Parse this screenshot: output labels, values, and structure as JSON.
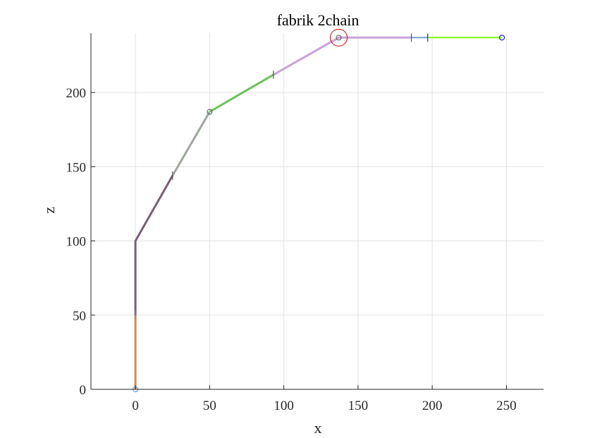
{
  "chart_data": {
    "type": "line",
    "title": "fabrik 2chain",
    "xlabel": "x",
    "ylabel": "z",
    "xlim": [
      -30,
      275
    ],
    "ylim": [
      0,
      240
    ],
    "xticks": [
      0,
      50,
      100,
      150,
      200,
      250
    ],
    "yticks": [
      0,
      50,
      100,
      150,
      200
    ],
    "xtick_labels": [
      "0",
      "50",
      "100",
      "150",
      "200",
      "250"
    ],
    "ytick_labels": [
      "0",
      "50",
      "100",
      "150",
      "200"
    ],
    "grid": true,
    "segments": [
      {
        "color": "#d98c4a",
        "width": 3,
        "points": [
          [
            0,
            0
          ],
          [
            0,
            50
          ]
        ]
      },
      {
        "color": "#7a5e7a",
        "width": 3,
        "points": [
          [
            0,
            50
          ],
          [
            0,
            100
          ],
          [
            25,
            144
          ]
        ]
      },
      {
        "color": "#9aa89a",
        "width": 3,
        "points": [
          [
            25,
            144
          ],
          [
            50,
            187
          ]
        ]
      },
      {
        "color": "#6cbf5c",
        "width": 3,
        "points": [
          [
            50,
            187
          ],
          [
            93,
            212
          ]
        ]
      },
      {
        "color": "#c9a2d9",
        "width": 3,
        "points": [
          [
            93,
            212
          ],
          [
            137,
            237
          ],
          [
            186,
            237
          ]
        ]
      },
      {
        "color": "#74a0d8",
        "width": 2,
        "points": [
          [
            186,
            237
          ],
          [
            197,
            237
          ]
        ]
      },
      {
        "color": "#7fff00",
        "width": 2,
        "points": [
          [
            197,
            237
          ],
          [
            247,
            237
          ]
        ]
      }
    ],
    "joints": [
      {
        "x": 0,
        "y": 0,
        "color": "#4a90e2"
      },
      {
        "x": 50,
        "y": 187,
        "color": "#555555"
      },
      {
        "x": 137,
        "y": 237,
        "color": "#555555"
      },
      {
        "x": 247,
        "y": 237,
        "color": "#0000cc"
      }
    ],
    "target": {
      "x": 137,
      "y": 237,
      "color": "#dd0000"
    },
    "tick_marks": [
      {
        "x": 0,
        "y": 50,
        "color": "#4a90e2"
      },
      {
        "x": 25,
        "y": 144,
        "color": "#444444"
      },
      {
        "x": 93,
        "y": 212,
        "color": "#333333"
      },
      {
        "x": 186,
        "y": 237,
        "color": "#006400"
      },
      {
        "x": 197,
        "y": 237,
        "color": "#0000aa"
      }
    ]
  }
}
